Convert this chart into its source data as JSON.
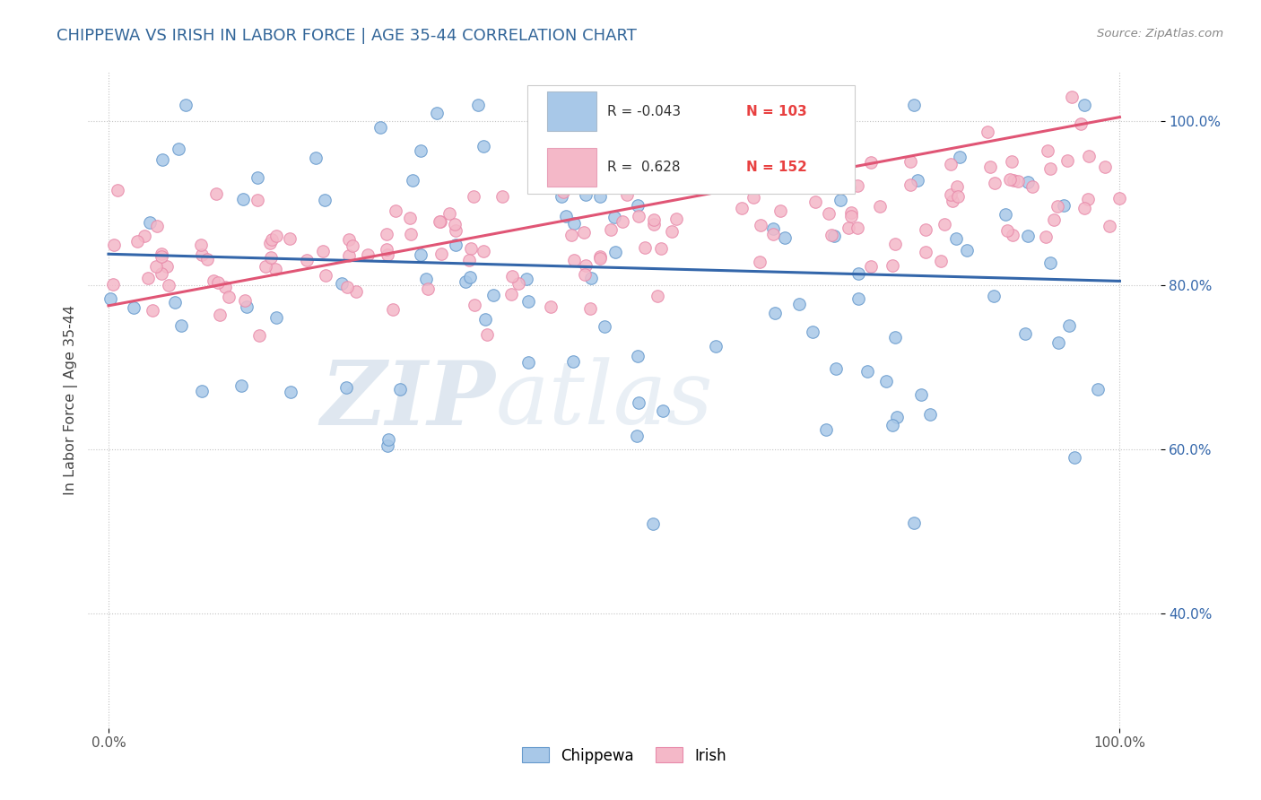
{
  "title": "CHIPPEWA VS IRISH IN LABOR FORCE | AGE 35-44 CORRELATION CHART",
  "source": "Source: ZipAtlas.com",
  "ylabel": "In Labor Force | Age 35-44",
  "blue_color": "#a8c8e8",
  "blue_edge_color": "#6699cc",
  "blue_line_color": "#3366aa",
  "pink_color": "#f4b8c8",
  "pink_edge_color": "#e88aaa",
  "pink_line_color": "#e05575",
  "title_color": "#336699",
  "r_label_color": "#222222",
  "n_value_color": "#e84040",
  "watermark_zip_color": "#b8cce0",
  "watermark_atlas_color": "#c8d8e8",
  "legend_r_blue": "R = -0.043",
  "legend_n_blue": "N = 103",
  "legend_r_pink": "R =  0.628",
  "legend_n_pink": "N = 152",
  "blue_line_start_y": 0.838,
  "blue_line_end_y": 0.805,
  "pink_line_start_y": 0.775,
  "pink_line_end_y": 1.005,
  "y_ticks": [
    0.4,
    0.6,
    0.8,
    1.0
  ],
  "y_tick_labels": [
    "40.0%",
    "60.0%",
    "80.0%",
    "100.0%"
  ],
  "x_tick_labels_left": "0.0%",
  "x_tick_labels_right": "100.0%",
  "y_min": 0.26,
  "y_max": 1.06,
  "x_min": -0.02,
  "x_max": 1.04
}
